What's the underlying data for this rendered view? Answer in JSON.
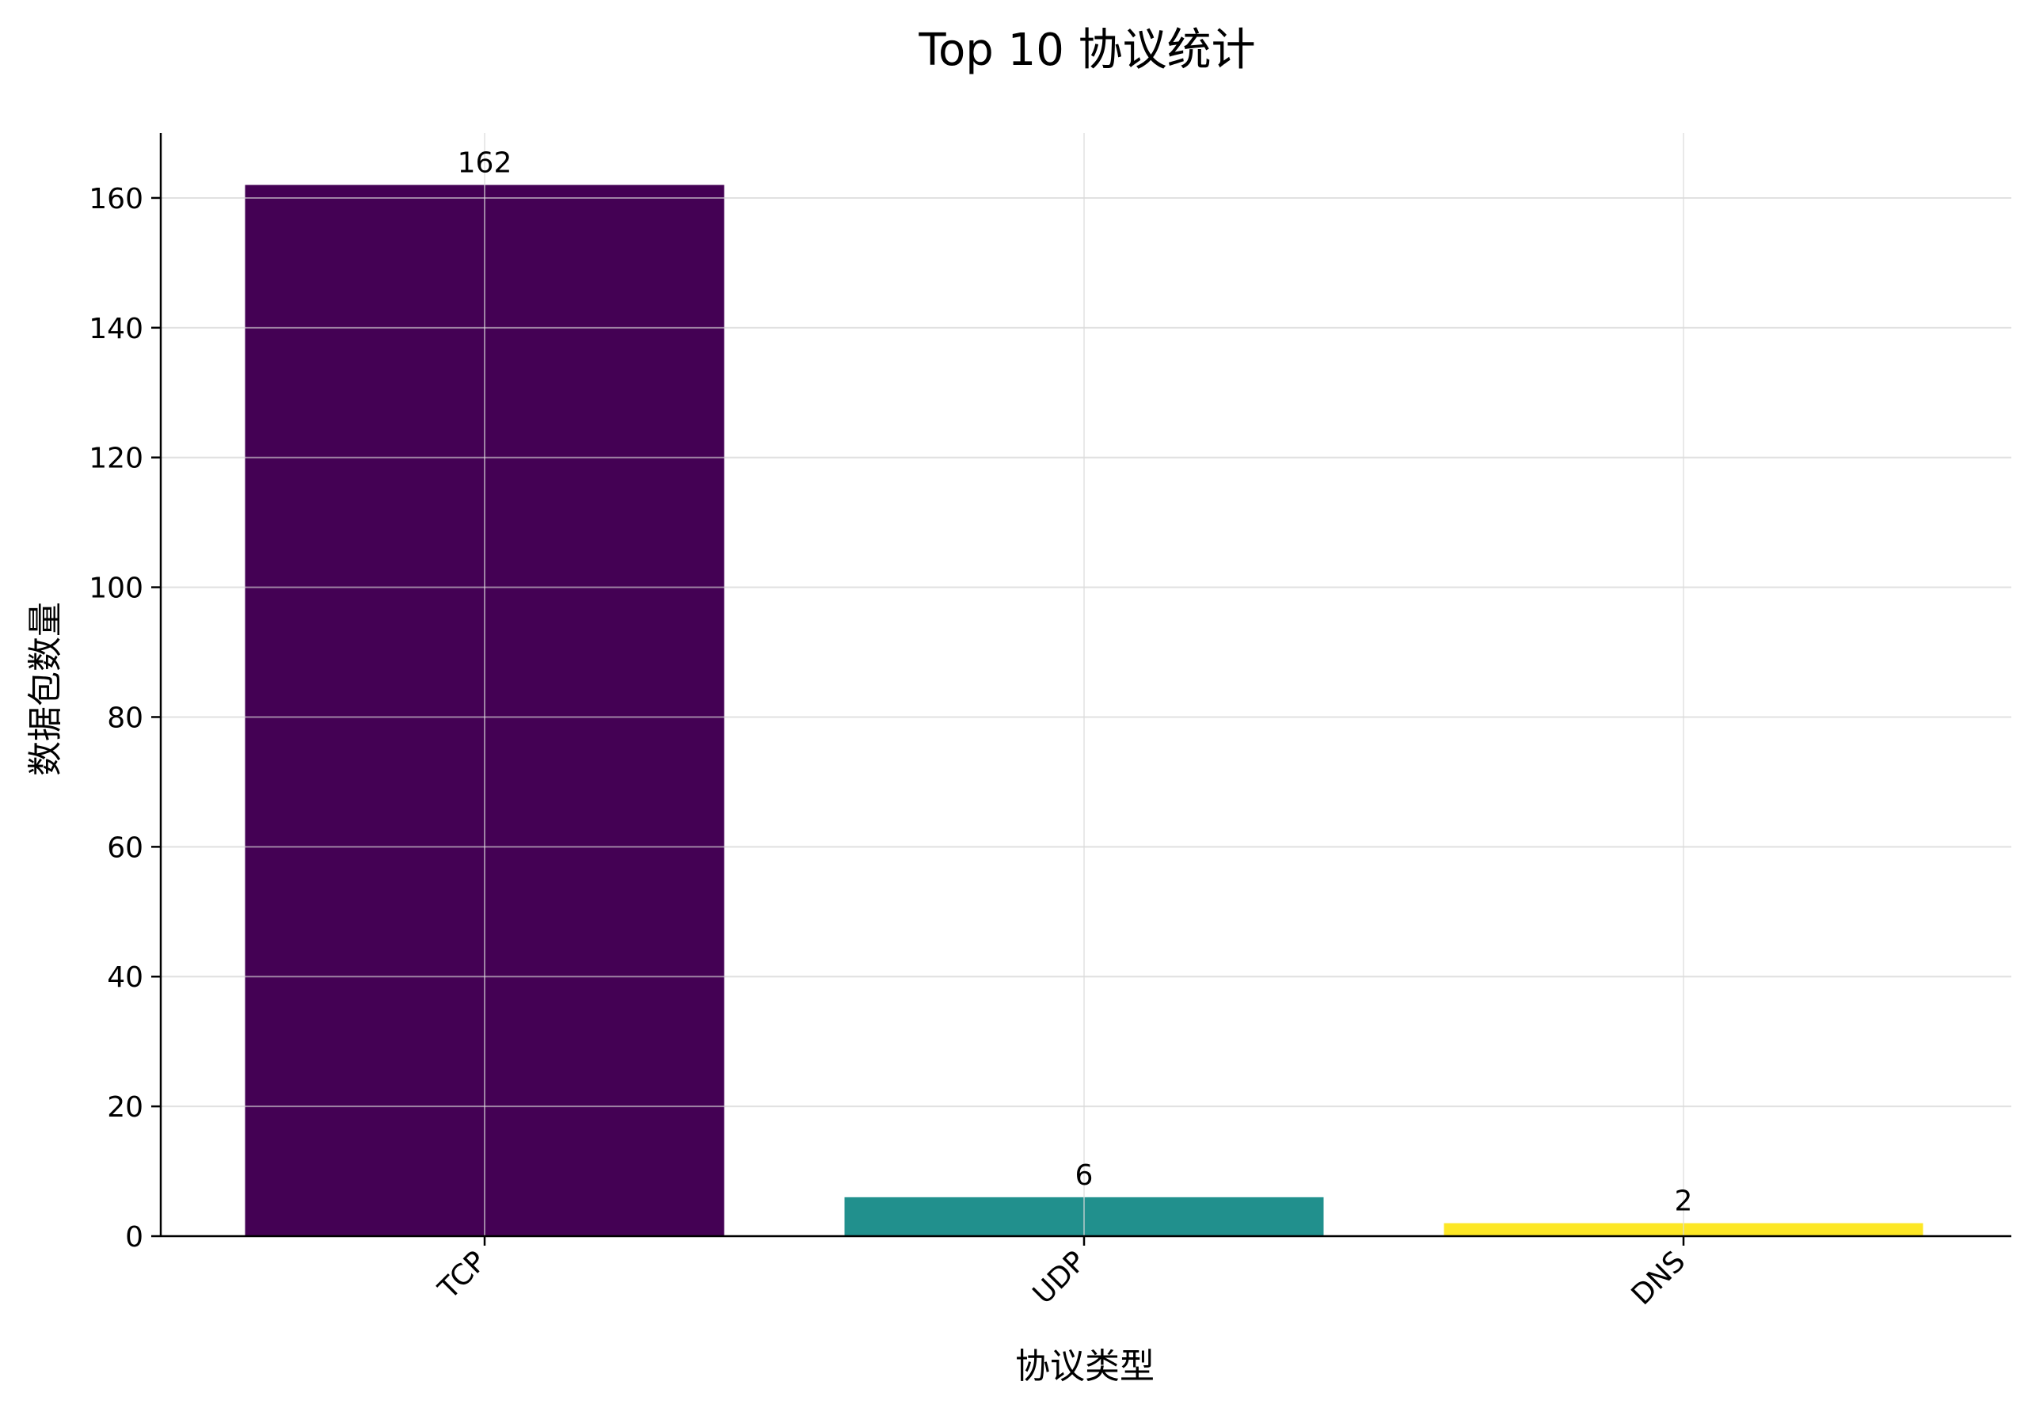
{
  "chart_data": {
    "type": "bar",
    "title": "Top 10 协议统计",
    "xlabel": "协议类型",
    "ylabel": "数据包数量",
    "categories": [
      "TCP",
      "UDP",
      "DNS"
    ],
    "values": [
      162,
      6,
      2
    ],
    "colors": [
      "#440154",
      "#21908d",
      "#fde725"
    ],
    "ylim": [
      0,
      170
    ],
    "yticks": [
      0,
      20,
      40,
      60,
      80,
      100,
      120,
      140,
      160
    ],
    "grid": true,
    "legend": "none"
  }
}
